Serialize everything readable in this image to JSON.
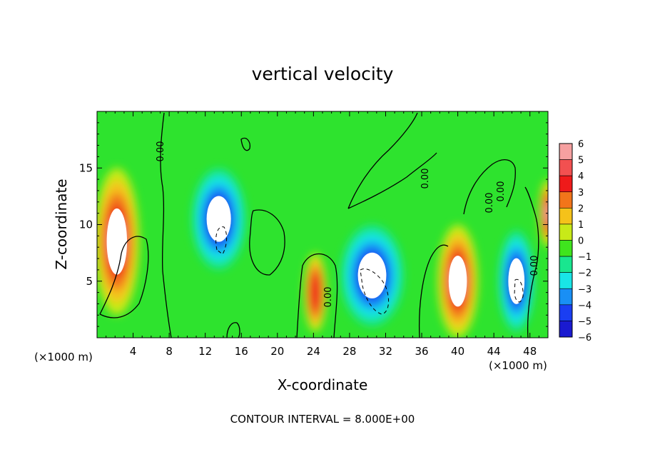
{
  "chart_data": {
    "type": "heatmap",
    "title": "vertical velocity",
    "xlabel": "X-coordinate",
    "ylabel": "Z-coordinate",
    "x_unit_label": "(×1000 m)",
    "x_unit_label_right": "(×1000 m)",
    "xlim": [
      0,
      50
    ],
    "ylim": [
      0,
      20
    ],
    "x_ticks": [
      4,
      8,
      12,
      16,
      20,
      24,
      28,
      32,
      36,
      40,
      44,
      48
    ],
    "y_ticks": [
      5,
      10,
      15
    ],
    "x_tick_labels": [
      "4",
      "8",
      "12",
      "16",
      "20",
      "24",
      "28",
      "32",
      "36",
      "40",
      "44",
      "48"
    ],
    "y_tick_labels": [
      "5",
      "10",
      "15"
    ],
    "colorbar": {
      "levels": [
        6,
        5,
        4,
        3,
        2,
        1,
        0,
        -1,
        -2,
        -3,
        -4,
        -5,
        -6
      ],
      "labels": [
        "6",
        "5",
        "4",
        "3",
        "2",
        "1",
        "0",
        "−1",
        "−2",
        "−3",
        "−4",
        "−5",
        "−6"
      ],
      "colors": [
        "#f6a0a0",
        "#f25050",
        "#ef1a1a",
        "#f2751a",
        "#f5c21a",
        "#c8ea18",
        "#3fe41e",
        "#19e68f",
        "#19e5e6",
        "#198ff5",
        "#1a3ef2",
        "#1a1ad0",
        "#7a1ac6"
      ],
      "background": "#2ee32e"
    },
    "contour_labels": [
      "0.00",
      "0.00",
      "0.00",
      "0.00",
      "0.00",
      "0.00"
    ],
    "cells": [
      {
        "x": 2.2,
        "z": 8.5,
        "w": 5.0,
        "h": 13,
        "value": 6,
        "core": true
      },
      {
        "x": 13.5,
        "z": 10.5,
        "w": 6.0,
        "h": 9,
        "value": -5,
        "core": true
      },
      {
        "x": 24.2,
        "z": 4.0,
        "w": 2.5,
        "h": 7,
        "value": 4,
        "core": false
      },
      {
        "x": 30.5,
        "z": 5.5,
        "w": 7.0,
        "h": 9,
        "value": -5,
        "core": true
      },
      {
        "x": 40.0,
        "z": 5.0,
        "w": 4.5,
        "h": 10,
        "value": 6,
        "core": true
      },
      {
        "x": 46.5,
        "z": 5.0,
        "w": 4.0,
        "h": 9,
        "value": -5,
        "core": true
      },
      {
        "x": 50.0,
        "z": 11.0,
        "w": 2.0,
        "h": 6,
        "value": 6,
        "core": false
      }
    ]
  },
  "footer": {
    "contour_interval": "CONTOUR INTERVAL = 8.000E+00"
  }
}
